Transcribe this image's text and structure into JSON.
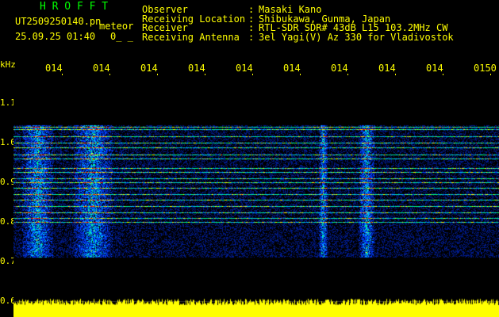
{
  "header": {
    "app_title": "H R O F F T",
    "filename": "UT2509250140.pn",
    "mode": "meteor",
    "datetime": "25.09.25 01:40",
    "counter": "0_ _",
    "fields": [
      {
        "label": "Observer",
        "value": "Masaki Kano"
      },
      {
        "label": "Receiving Location",
        "value": "Shibukawa, Gunma, Japan"
      },
      {
        "label": "Receiver",
        "value": "RTL-SDR SDR# 43dB L15 103.2MHz CW"
      },
      {
        "label": "Receiving Antenna",
        "value": "3el Yagi(V) Az 330 for Vladivostok"
      }
    ]
  },
  "axis": {
    "y_unit": "kHz",
    "y_ticks": [
      "1.1",
      "1.0",
      "0.9",
      "0.8",
      "0.7",
      "0.6"
    ],
    "x_ticks": [
      "0141",
      "0142",
      "0143",
      "0144",
      "0145",
      "0146",
      "0147",
      "0148",
      "0149",
      "0150"
    ]
  },
  "colors": {
    "text": "#ffff00",
    "title": "#00ff00",
    "background": "#000000",
    "signal_bar": "#ffff00"
  }
}
